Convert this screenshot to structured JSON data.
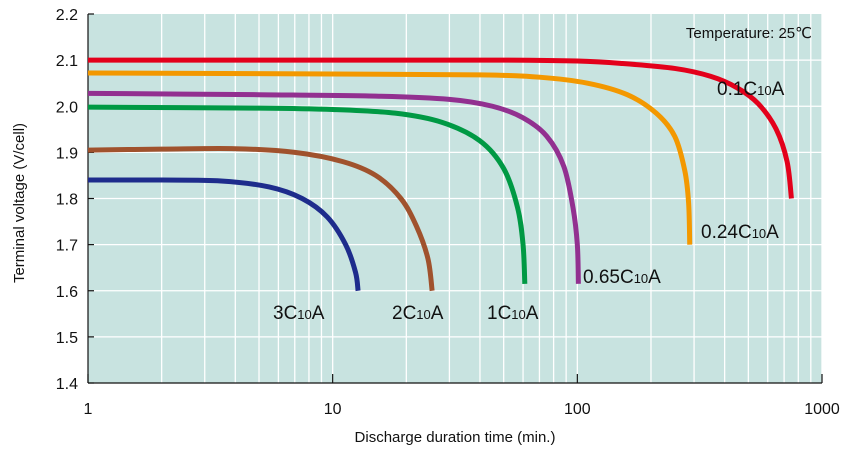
{
  "chart_data": {
    "type": "line",
    "xlabel": "Discharge duration time (min.)",
    "ylabel": "Terminal voltage (V/cell)",
    "xscale": "log",
    "xlim": [
      1,
      1000
    ],
    "ylim": [
      1.4,
      2.2
    ],
    "x_ticks": [
      "1",
      "10",
      "100",
      "1000"
    ],
    "y_ticks": [
      "1.4",
      "1.5",
      "1.6",
      "1.7",
      "1.8",
      "1.9",
      "2.0",
      "2.1",
      "2.2"
    ],
    "grid": true,
    "background_color": "#c8e3e0",
    "annotation": "Temperature: 25℃",
    "series": [
      {
        "label_main": "0.1C",
        "label_sub": "10",
        "label_unit": "A",
        "color": "#e3001b",
        "points": [
          [
            1,
            2.1
          ],
          [
            10,
            2.1
          ],
          [
            50,
            2.1
          ],
          [
            100,
            2.098
          ],
          [
            150,
            2.093
          ],
          [
            250,
            2.082
          ],
          [
            350,
            2.065
          ],
          [
            450,
            2.04
          ],
          [
            550,
            2.005
          ],
          [
            650,
            1.95
          ],
          [
            720,
            1.88
          ],
          [
            750,
            1.8
          ]
        ]
      },
      {
        "label_main": "0.24C",
        "label_sub": "10",
        "label_unit": "A",
        "color": "#f39800",
        "points": [
          [
            1,
            2.072
          ],
          [
            10,
            2.07
          ],
          [
            40,
            2.068
          ],
          [
            70,
            2.063
          ],
          [
            110,
            2.05
          ],
          [
            160,
            2.025
          ],
          [
            210,
            1.985
          ],
          [
            250,
            1.935
          ],
          [
            275,
            1.86
          ],
          [
            285,
            1.79
          ],
          [
            288,
            1.7
          ]
        ]
      },
      {
        "label_main": "0.65C",
        "label_sub": "10",
        "label_unit": "A",
        "color": "#923090",
        "points": [
          [
            1,
            2.028
          ],
          [
            5,
            2.025
          ],
          [
            15,
            2.022
          ],
          [
            30,
            2.015
          ],
          [
            45,
            2.0
          ],
          [
            60,
            1.975
          ],
          [
            75,
            1.935
          ],
          [
            88,
            1.87
          ],
          [
            96,
            1.78
          ],
          [
            100,
            1.7
          ],
          [
            101,
            1.615
          ]
        ]
      },
      {
        "label_main": "1C",
        "label_sub": "10",
        "label_unit": "A",
        "color": "#009944",
        "points": [
          [
            1,
            1.998
          ],
          [
            5,
            1.996
          ],
          [
            10,
            1.993
          ],
          [
            18,
            1.985
          ],
          [
            28,
            1.965
          ],
          [
            40,
            1.925
          ],
          [
            50,
            1.865
          ],
          [
            57,
            1.78
          ],
          [
            60,
            1.7
          ],
          [
            61,
            1.615
          ]
        ]
      },
      {
        "label_main": "2C",
        "label_sub": "10",
        "label_unit": "A",
        "color": "#a0522d",
        "points": [
          [
            1,
            1.905
          ],
          [
            2,
            1.907
          ],
          [
            4,
            1.908
          ],
          [
            7,
            1.9
          ],
          [
            11,
            1.88
          ],
          [
            15,
            1.85
          ],
          [
            19,
            1.8
          ],
          [
            22,
            1.74
          ],
          [
            24.5,
            1.67
          ],
          [
            25.5,
            1.6
          ]
        ]
      },
      {
        "label_main": "3C",
        "label_sub": "10",
        "label_unit": "A",
        "color": "#1e2c8c",
        "points": [
          [
            1,
            1.84
          ],
          [
            2,
            1.84
          ],
          [
            3.5,
            1.838
          ],
          [
            5.5,
            1.825
          ],
          [
            7.5,
            1.8
          ],
          [
            9.5,
            1.76
          ],
          [
            11.3,
            1.7
          ],
          [
            12.4,
            1.64
          ],
          [
            12.7,
            1.6
          ]
        ]
      }
    ]
  }
}
